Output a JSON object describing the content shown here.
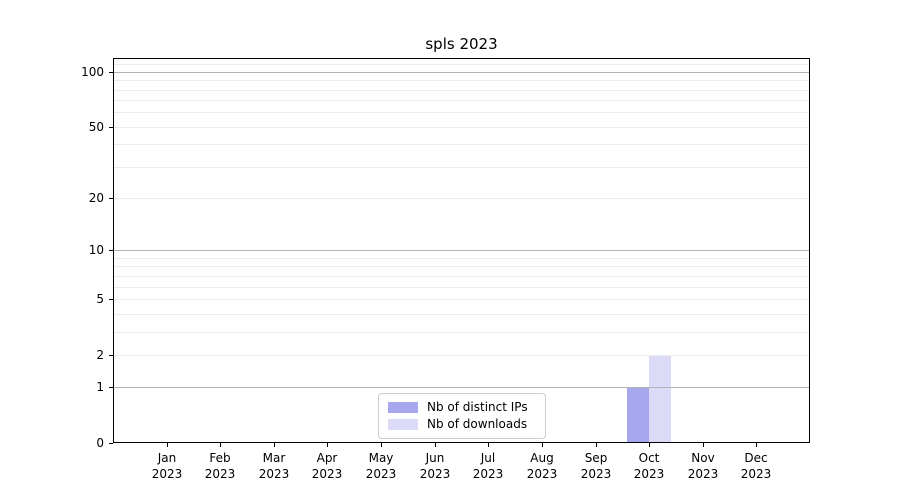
{
  "title": "spls 2023",
  "legend": {
    "items": [
      {
        "label": "Nb of distinct IPs",
        "color": "#a7a7ee"
      },
      {
        "label": "Nb of downloads",
        "color": "#dbdbf8"
      }
    ]
  },
  "chart_data": {
    "type": "bar",
    "title": "spls 2023",
    "categories": [
      "Jan 2023",
      "Feb 2023",
      "Mar 2023",
      "Apr 2023",
      "May 2023",
      "Jun 2023",
      "Jul 2023",
      "Aug 2023",
      "Sep 2023",
      "Oct 2023",
      "Nov 2023",
      "Dec 2023"
    ],
    "series": [
      {
        "name": "Nb of distinct IPs",
        "color": "#a7a7ee",
        "values": [
          0,
          0,
          0,
          0,
          0,
          0,
          0,
          0,
          0,
          1,
          0,
          0
        ]
      },
      {
        "name": "Nb of downloads",
        "color": "#dbdbf8",
        "values": [
          0,
          0,
          0,
          0,
          0,
          0,
          0,
          0,
          0,
          2,
          0,
          0
        ]
      }
    ],
    "xlabel": "",
    "ylabel": "",
    "yscale": "log1p",
    "ylim": [
      0,
      119
    ],
    "yticks": [
      0,
      1,
      2,
      5,
      10,
      20,
      50,
      100
    ],
    "major_gridlines": [
      1,
      10,
      100
    ],
    "minor_gridlines": [
      2,
      3,
      4,
      6,
      7,
      8,
      9,
      5,
      20,
      30,
      40,
      50,
      60,
      70,
      80,
      90,
      110
    ],
    "grid": true,
    "legend_position": "lower center"
  }
}
